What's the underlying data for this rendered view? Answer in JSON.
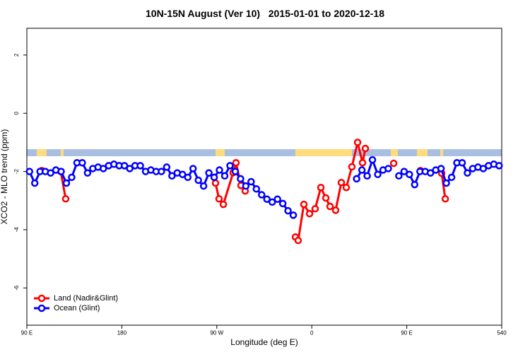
{
  "chart_data": {
    "type": "line",
    "title": "10N-15N August (Ver 10)   2015-01-01 to 2020-12-18",
    "x_label": "Longitude (deg E)",
    "y_label": "XCO2 - MLO trend (ppm)",
    "xlim": [
      90,
      540
    ],
    "ylim": [
      -7.28,
      2.92
    ],
    "xticks": [
      {
        "value": 90,
        "label": "90 E"
      },
      180,
      {
        "value": 270,
        "label": "90 W"
      },
      {
        "value": 360,
        "label": "0"
      },
      {
        "value": 450,
        "label": "90 E"
      },
      540
    ],
    "yticks": [
      2,
      0,
      -2,
      -4,
      -6
    ],
    "legend_position": "bottomleft",
    "series": [
      {
        "name": "Land (Nadir&Glint)",
        "color": "#ff0000",
        "x": [
          104.1,
          null,
          122.1,
          126.8,
          null,
          268.8,
          272.1,
          276.2,
          285.5,
          288.2,
          292.9,
          296.9,
          null,
          344.5,
          347.1,
          352.5,
          357.9,
          363.2,
          368.6,
          373.3,
          377.3,
          382.6,
          388.0,
          392.7,
          398.0,
          403.4,
          408.1,
          410.8,
          null,
          437.6,
          null,
          463.0,
          null,
          483.1,
          486.5
        ],
        "values": [
          -1.97,
          null,
          -2.0,
          -2.94,
          null,
          -2.4,
          -2.94,
          -3.13,
          -2.04,
          -1.7,
          -2.48,
          -2.67,
          null,
          -4.25,
          -4.37,
          -3.13,
          -3.45,
          -3.28,
          -2.55,
          -2.91,
          -3.2,
          -3.33,
          -2.38,
          -2.55,
          -1.84,
          -1.0,
          -1.7,
          -1.21,
          null,
          -1.72,
          null,
          -1.97,
          null,
          -2.06,
          -2.94
        ]
      },
      {
        "name": "Ocean (Glint)",
        "color": "#0000ff",
        "x": [
          92.5,
          97.5,
          102.5,
          107.5,
          112.5,
          117.5,
          122.5,
          127.5,
          132.5,
          137.5,
          142.5,
          147.5,
          152.5,
          157.5,
          162.5,
          167.5,
          172.5,
          177.5,
          182.5,
          187.5,
          192.5,
          197.5,
          202.5,
          207.5,
          212.5,
          217.5,
          222.5,
          227.5,
          232.5,
          237.5,
          242.5,
          247.5,
          252.5,
          257.5,
          262.5,
          267.5,
          272.5,
          277.5,
          282.5,
          287.5,
          292.5,
          297.5,
          302.5,
          307.5,
          312.5,
          317.5,
          322.5,
          327.5,
          332.5,
          337.5,
          342.5,
          null,
          402.5,
          407.5,
          412.5,
          417.5,
          422.5,
          427.5,
          432.5,
          null,
          442.5,
          447.5,
          452.5,
          457.5,
          462.5,
          467.5,
          472.5,
          477.5,
          482.5,
          487.5,
          492.5,
          497.5,
          502.5,
          507.5,
          512.5,
          517.5,
          522.5,
          527.5,
          532.5,
          537.5
        ],
        "values": [
          -2.0,
          -2.4,
          -2.0,
          -2.0,
          -2.05,
          -1.95,
          -2.0,
          -2.4,
          -2.2,
          -1.7,
          -1.7,
          -2.05,
          -1.9,
          -1.85,
          -1.9,
          -1.8,
          -1.75,
          -1.8,
          -1.8,
          -1.9,
          -1.8,
          -1.8,
          -2.0,
          -1.95,
          -2.0,
          -2.0,
          -1.85,
          -2.15,
          -2.05,
          -2.1,
          -2.2,
          -1.9,
          -2.3,
          -2.5,
          -2.05,
          -2.2,
          -1.95,
          -2.15,
          -1.8,
          -2.0,
          -2.25,
          -2.5,
          -2.35,
          -2.6,
          -2.8,
          -2.95,
          -3.05,
          -2.95,
          -3.1,
          -3.35,
          -3.5,
          null,
          -2.25,
          -1.95,
          -2.15,
          -1.6,
          -2.1,
          -1.95,
          -1.9,
          null,
          -2.15,
          -2.0,
          -2.1,
          -2.45,
          -2.0,
          -2.0,
          -2.05,
          -1.95,
          -1.9,
          -2.4,
          -2.2,
          -1.7,
          -1.7,
          -2.05,
          -1.9,
          -1.85,
          -1.9,
          -1.8,
          -1.75,
          -1.8
        ]
      }
    ]
  }
}
